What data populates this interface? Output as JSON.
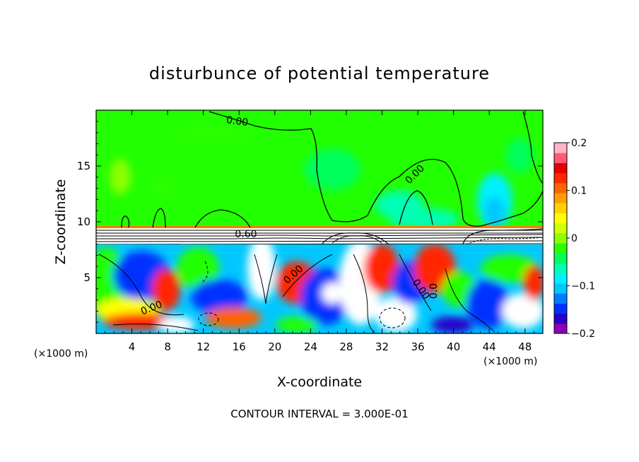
{
  "chart_data": {
    "type": "heatmap",
    "title": "disturbunce of potential temperature",
    "xlabel": "X-coordinate",
    "ylabel": "Z-coordinate",
    "x_unit": "(×1000 m)",
    "z_unit": "(×1000 m)",
    "footer": "CONTOUR INTERVAL = 3.000E-01",
    "xlim": [
      0,
      50
    ],
    "ylim": [
      0,
      20
    ],
    "x_ticks": [
      4,
      8,
      12,
      16,
      20,
      24,
      28,
      32,
      36,
      40,
      44,
      48
    ],
    "y_ticks": [
      5,
      10,
      15
    ],
    "colorbar": {
      "range": [
        -0.2,
        0.2
      ],
      "tick_values": [
        0.2,
        0.1,
        0,
        -0.1,
        -0.2
      ],
      "tick_labels": [
        "0.2",
        "0.1",
        "0",
        "−0.1",
        "−0.2"
      ],
      "colors": [
        "#8c00b4",
        "#2800c8",
        "#0032ff",
        "#007cff",
        "#00c8ff",
        "#00f0ff",
        "#00ffb4",
        "#00ff5a",
        "#2aff00",
        "#8cff00",
        "#d2ff00",
        "#ffff00",
        "#ffd200",
        "#ffa000",
        "#ff6400",
        "#ff2800",
        "#e60000",
        "#ff5a78",
        "#ffb4c3"
      ]
    },
    "contour_labels": [
      {
        "text": "0.00",
        "x": 15.5,
        "z": 18.6,
        "angle": 8
      },
      {
        "text": "0.00",
        "x": 35.2,
        "z": 14.3,
        "angle": -45
      },
      {
        "text": "0.60",
        "x": 16.8,
        "z": 8.9,
        "angle": 0
      },
      {
        "text": "0.00",
        "x": 21.5,
        "z": 5.1,
        "angle": -42
      },
      {
        "text": "0.00",
        "x": 6.5,
        "z": 2.5,
        "angle": -22
      },
      {
        "text": "0.00",
        "x": 36.5,
        "z": 4.2,
        "angle": 55
      },
      {
        "text": "0.0",
        "x": 38.6,
        "z": 3.8,
        "angle": -90
      }
    ]
  }
}
